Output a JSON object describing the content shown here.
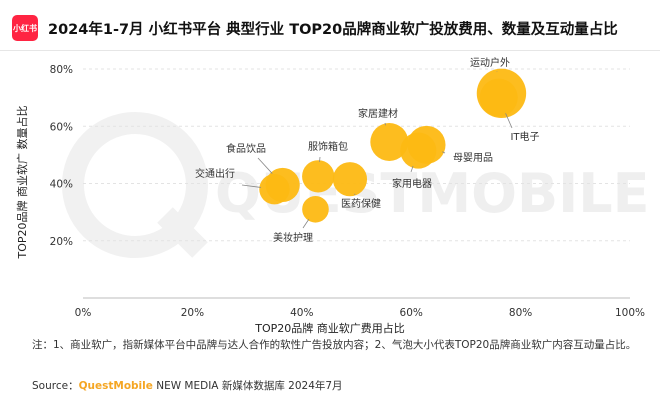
{
  "header": {
    "logo_text": "小红书",
    "title": "2024年1-7月 小红书平台 典型行业 TOP20品牌商业软广投放费用、数量及互动量占比"
  },
  "chart_data": {
    "type": "scatter",
    "xlabel": "TOP20品牌 商业软广费用占比",
    "ylabel": "TOP20品牌 商业软广 数量占比",
    "xlim": [
      0,
      100
    ],
    "ylim": [
      0,
      80
    ],
    "xticks": [
      "0%",
      "20%",
      "40%",
      "60%",
      "80%",
      "100%"
    ],
    "yticks": [
      "20%",
      "40%",
      "60%",
      "80%"
    ],
    "bubble_color": "#fdb913",
    "points": [
      {
        "label": "运动户外",
        "x": 76.5,
        "y": 71.5,
        "size": 1.3
      },
      {
        "label": "IT电子",
        "x": 76.0,
        "y": 70.0,
        "size": 1.0
      },
      {
        "label": "家居建材",
        "x": 56.0,
        "y": 54.5,
        "size": 1.0
      },
      {
        "label": "母婴用品",
        "x": 62.8,
        "y": 53.5,
        "size": 1.0
      },
      {
        "label": "家用电器",
        "x": 61.3,
        "y": 51.5,
        "size": 0.95
      },
      {
        "label": "服饰箱包",
        "x": 43.0,
        "y": 42.5,
        "size": 0.85
      },
      {
        "label": "医药保健",
        "x": 48.8,
        "y": 41.5,
        "size": 0.9
      },
      {
        "label": "食品饮品",
        "x": 36.5,
        "y": 39.5,
        "size": 0.9
      },
      {
        "label": "交通出行",
        "x": 35.0,
        "y": 38.0,
        "size": 0.8
      },
      {
        "label": "美妆护理",
        "x": 42.5,
        "y": 31.0,
        "size": 0.7
      }
    ]
  },
  "watermark": "QuestMobile",
  "note": "注：1、商业软广，指新媒体平台中品牌与达人合作的软性广告投放内容；2、气泡大小代表TOP20品牌商业软广内容互动量占比。",
  "source": {
    "prefix": "Source：",
    "brand": "QuestMobile",
    "suffix": " NEW MEDIA 新媒体数据库 2024年7月"
  }
}
